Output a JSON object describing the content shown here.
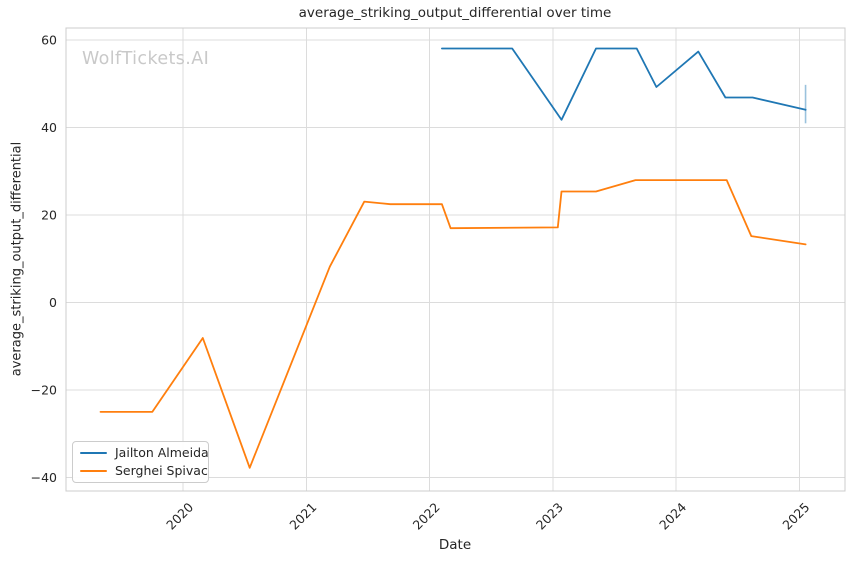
{
  "chart_data": {
    "type": "line",
    "title": "average_striking_output_differential over time",
    "xlabel": "Date",
    "ylabel": "average_striking_output_differential",
    "watermark": "WolfTickets.AI",
    "grid": true,
    "legend_position": "lower left",
    "xlim": [
      2019.05,
      2025.37
    ],
    "ylim": [
      -43.1,
      62.8
    ],
    "x_ticks": [
      {
        "value": 2020,
        "label": "2020"
      },
      {
        "value": 2021,
        "label": "2021"
      },
      {
        "value": 2022,
        "label": "2022"
      },
      {
        "value": 2023,
        "label": "2023"
      },
      {
        "value": 2024,
        "label": "2024"
      },
      {
        "value": 2025,
        "label": "2025"
      }
    ],
    "y_ticks": [
      {
        "value": 60,
        "label": "60"
      },
      {
        "value": 40,
        "label": "40"
      },
      {
        "value": 20,
        "label": "20"
      },
      {
        "value": 0,
        "label": "0"
      },
      {
        "value": -20,
        "label": "−20"
      },
      {
        "value": -40,
        "label": "−40"
      }
    ],
    "colors": {
      "grid": "#dcdcdc",
      "spine": "#cccccc",
      "text": "#262626",
      "watermark": "#c9c9c9",
      "background": "#ffffff"
    },
    "series": [
      {
        "name": "Jailton Almeida",
        "color": "#1f77b4",
        "points": [
          [
            2022.1,
            58.1
          ],
          [
            2022.67,
            58.1
          ],
          [
            2023.07,
            41.8
          ],
          [
            2023.35,
            58.1
          ],
          [
            2023.68,
            58.1
          ],
          [
            2023.84,
            49.3
          ],
          [
            2024.18,
            57.4
          ],
          [
            2024.4,
            46.9
          ],
          [
            2024.62,
            46.9
          ],
          [
            2025.05,
            44.1
          ]
        ]
      },
      {
        "name": "Serghei Spivac",
        "color": "#ff7f0e",
        "points": [
          [
            2019.33,
            -25.0
          ],
          [
            2019.75,
            -25.0
          ],
          [
            2020.16,
            -8.1
          ],
          [
            2020.54,
            -37.8
          ],
          [
            2021.19,
            8.2
          ],
          [
            2021.47,
            23.1
          ],
          [
            2021.68,
            22.5
          ],
          [
            2022.1,
            22.5
          ],
          [
            2022.17,
            17.0
          ],
          [
            2023.04,
            17.2
          ],
          [
            2023.07,
            25.4
          ],
          [
            2023.35,
            25.4
          ],
          [
            2023.67,
            28.0
          ],
          [
            2024.41,
            28.0
          ],
          [
            2024.61,
            15.2
          ],
          [
            2025.05,
            13.3
          ]
        ]
      }
    ],
    "error_bars": [
      {
        "series": "Jailton Almeida",
        "x": 2025.05,
        "low": 41.0,
        "high": 49.8
      }
    ]
  }
}
